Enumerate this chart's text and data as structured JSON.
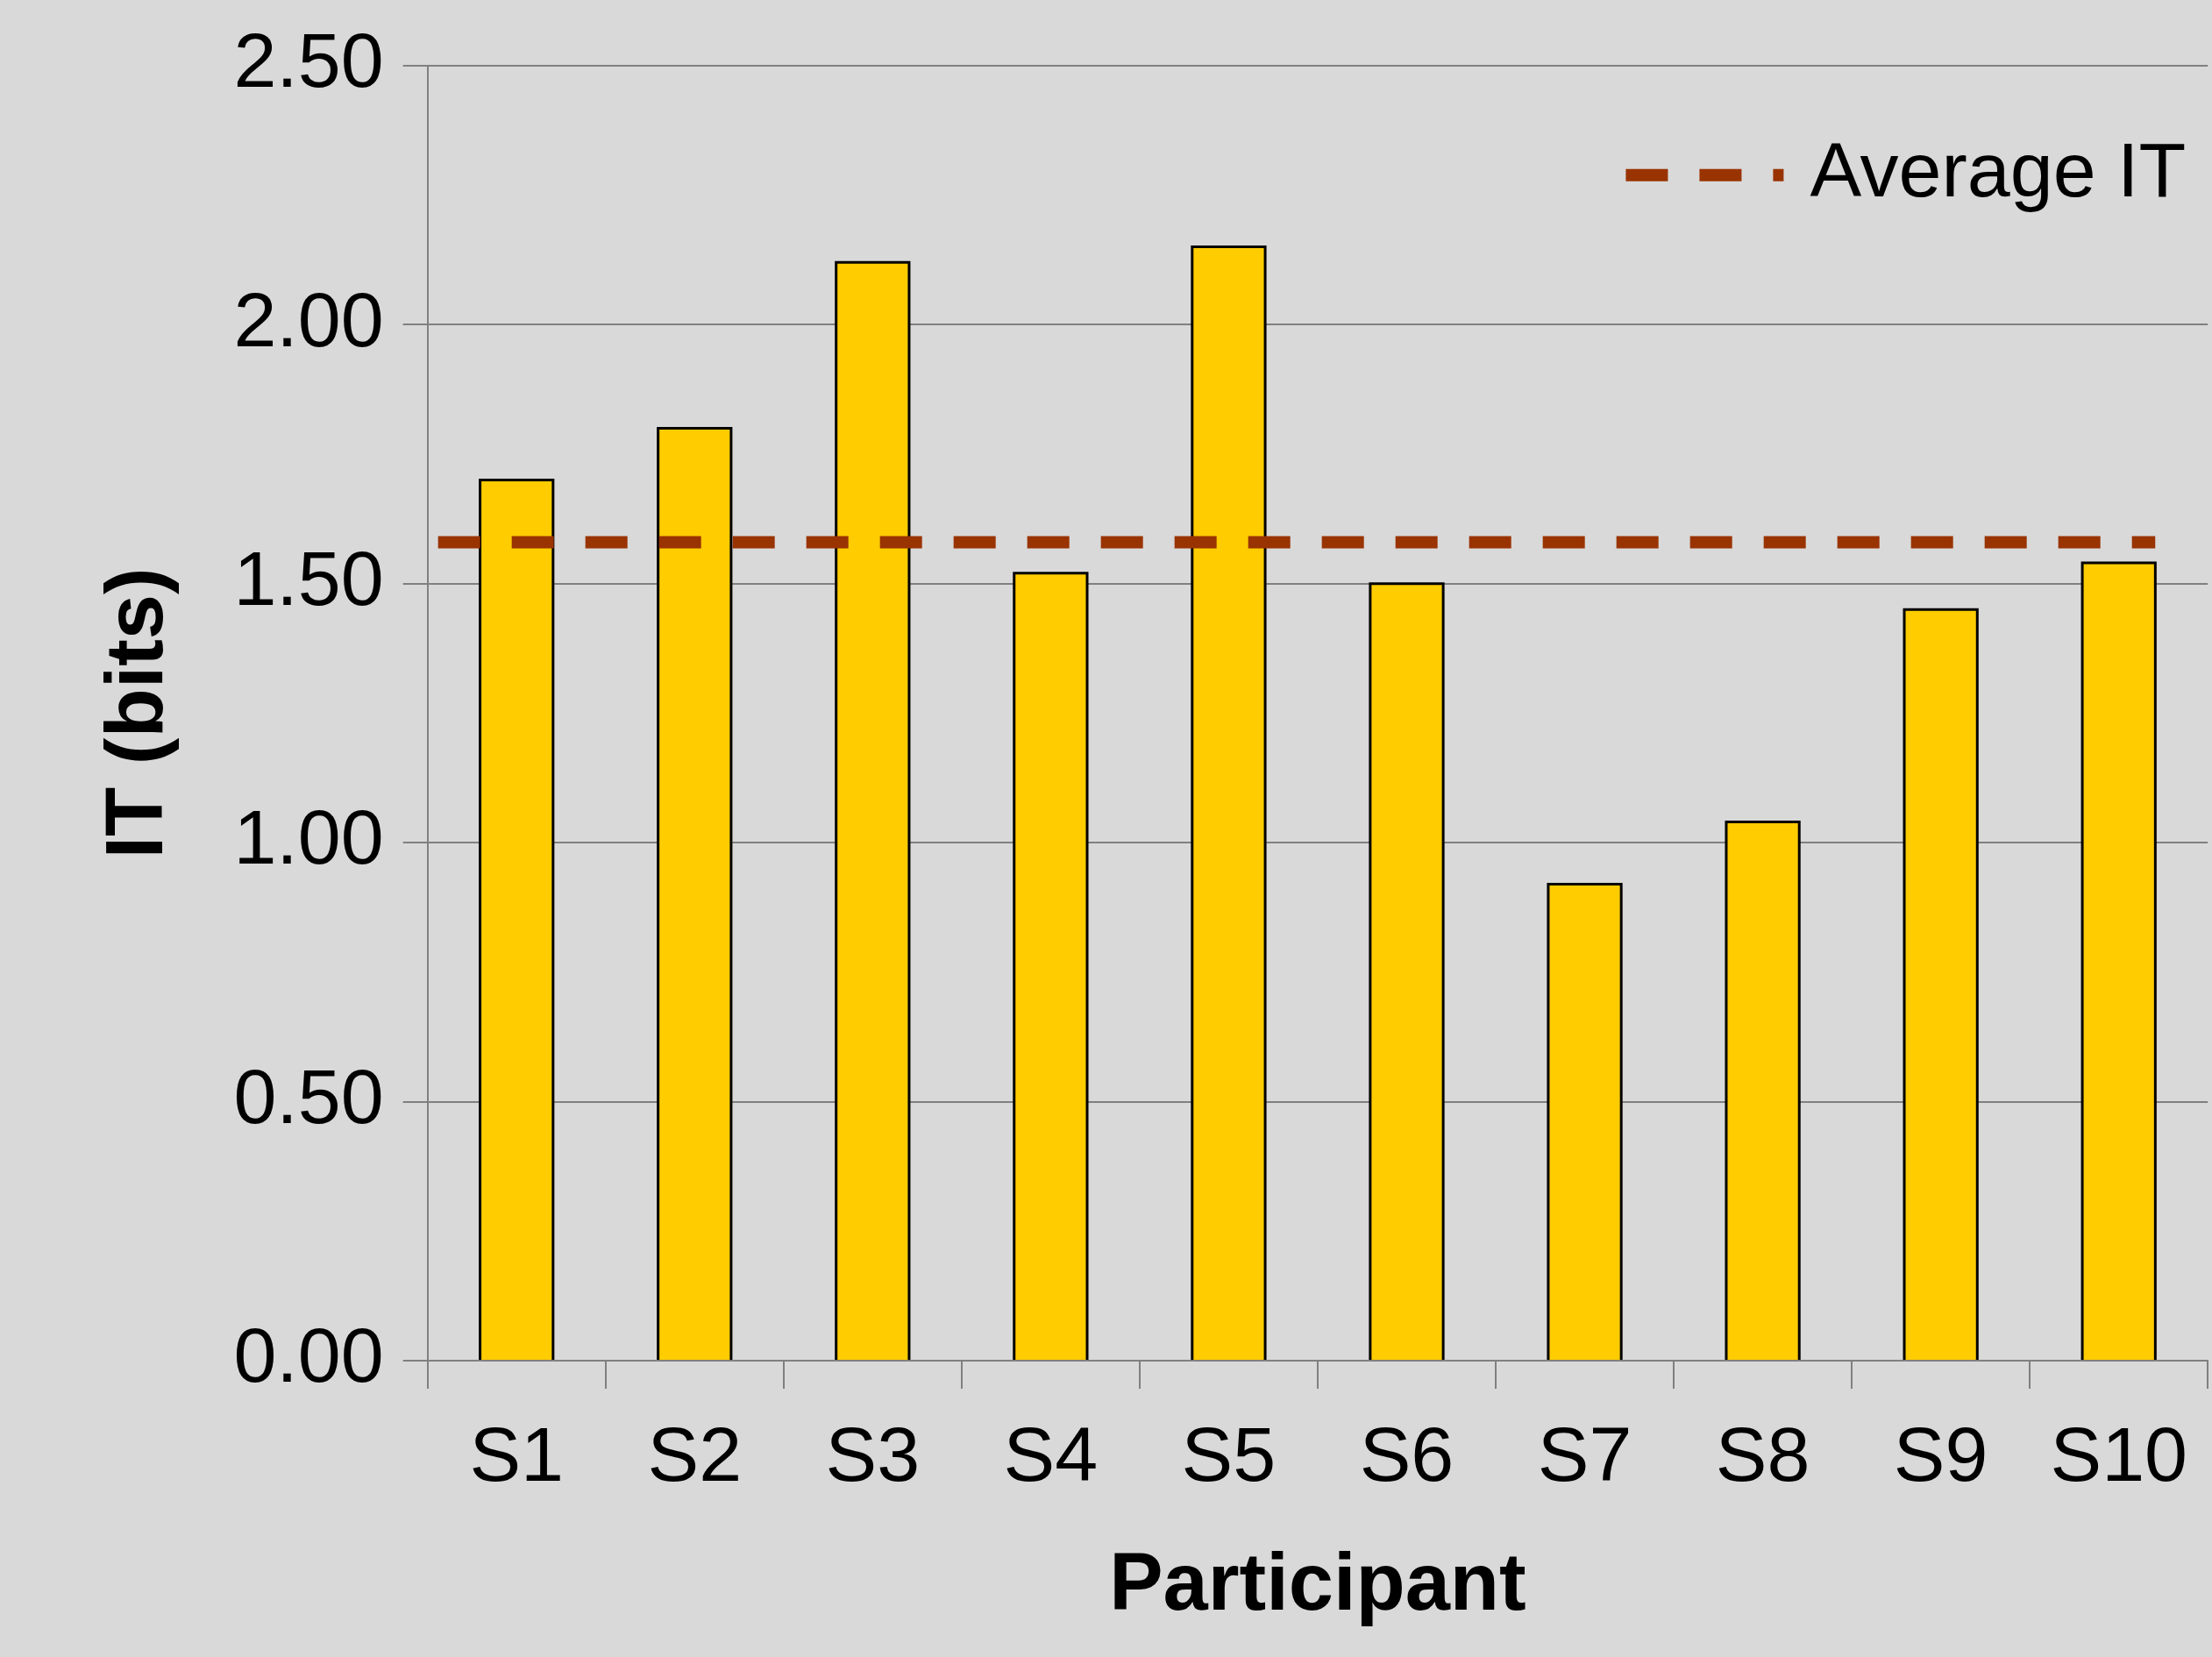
{
  "chart_data": {
    "type": "bar",
    "xlabel": "Participant",
    "ylabel": "IT (bits)",
    "categories": [
      "S1",
      "S2",
      "S3",
      "S4",
      "S5",
      "S6",
      "S7",
      "S8",
      "S9",
      "S10"
    ],
    "values": [
      1.7,
      1.8,
      2.12,
      1.52,
      2.15,
      1.5,
      0.92,
      1.04,
      1.45,
      1.54
    ],
    "color": "#ffcc00",
    "ylim": [
      0,
      2.5
    ],
    "yticks": [
      {
        "value": 0,
        "label": "0.00"
      },
      {
        "value": 0.5,
        "label": "0.50"
      },
      {
        "value": 1,
        "label": "1.00"
      },
      {
        "value": 1.5,
        "label": "1.50"
      },
      {
        "value": 2,
        "label": "2.00"
      },
      {
        "value": 2.5,
        "label": "2.50"
      }
    ],
    "grid": "y",
    "legend": "top right",
    "ref_lines": [
      {
        "axis": "y",
        "value": 1.58,
        "label": "Average IT",
        "color": "#993300",
        "line_style": "dashed"
      }
    ]
  }
}
